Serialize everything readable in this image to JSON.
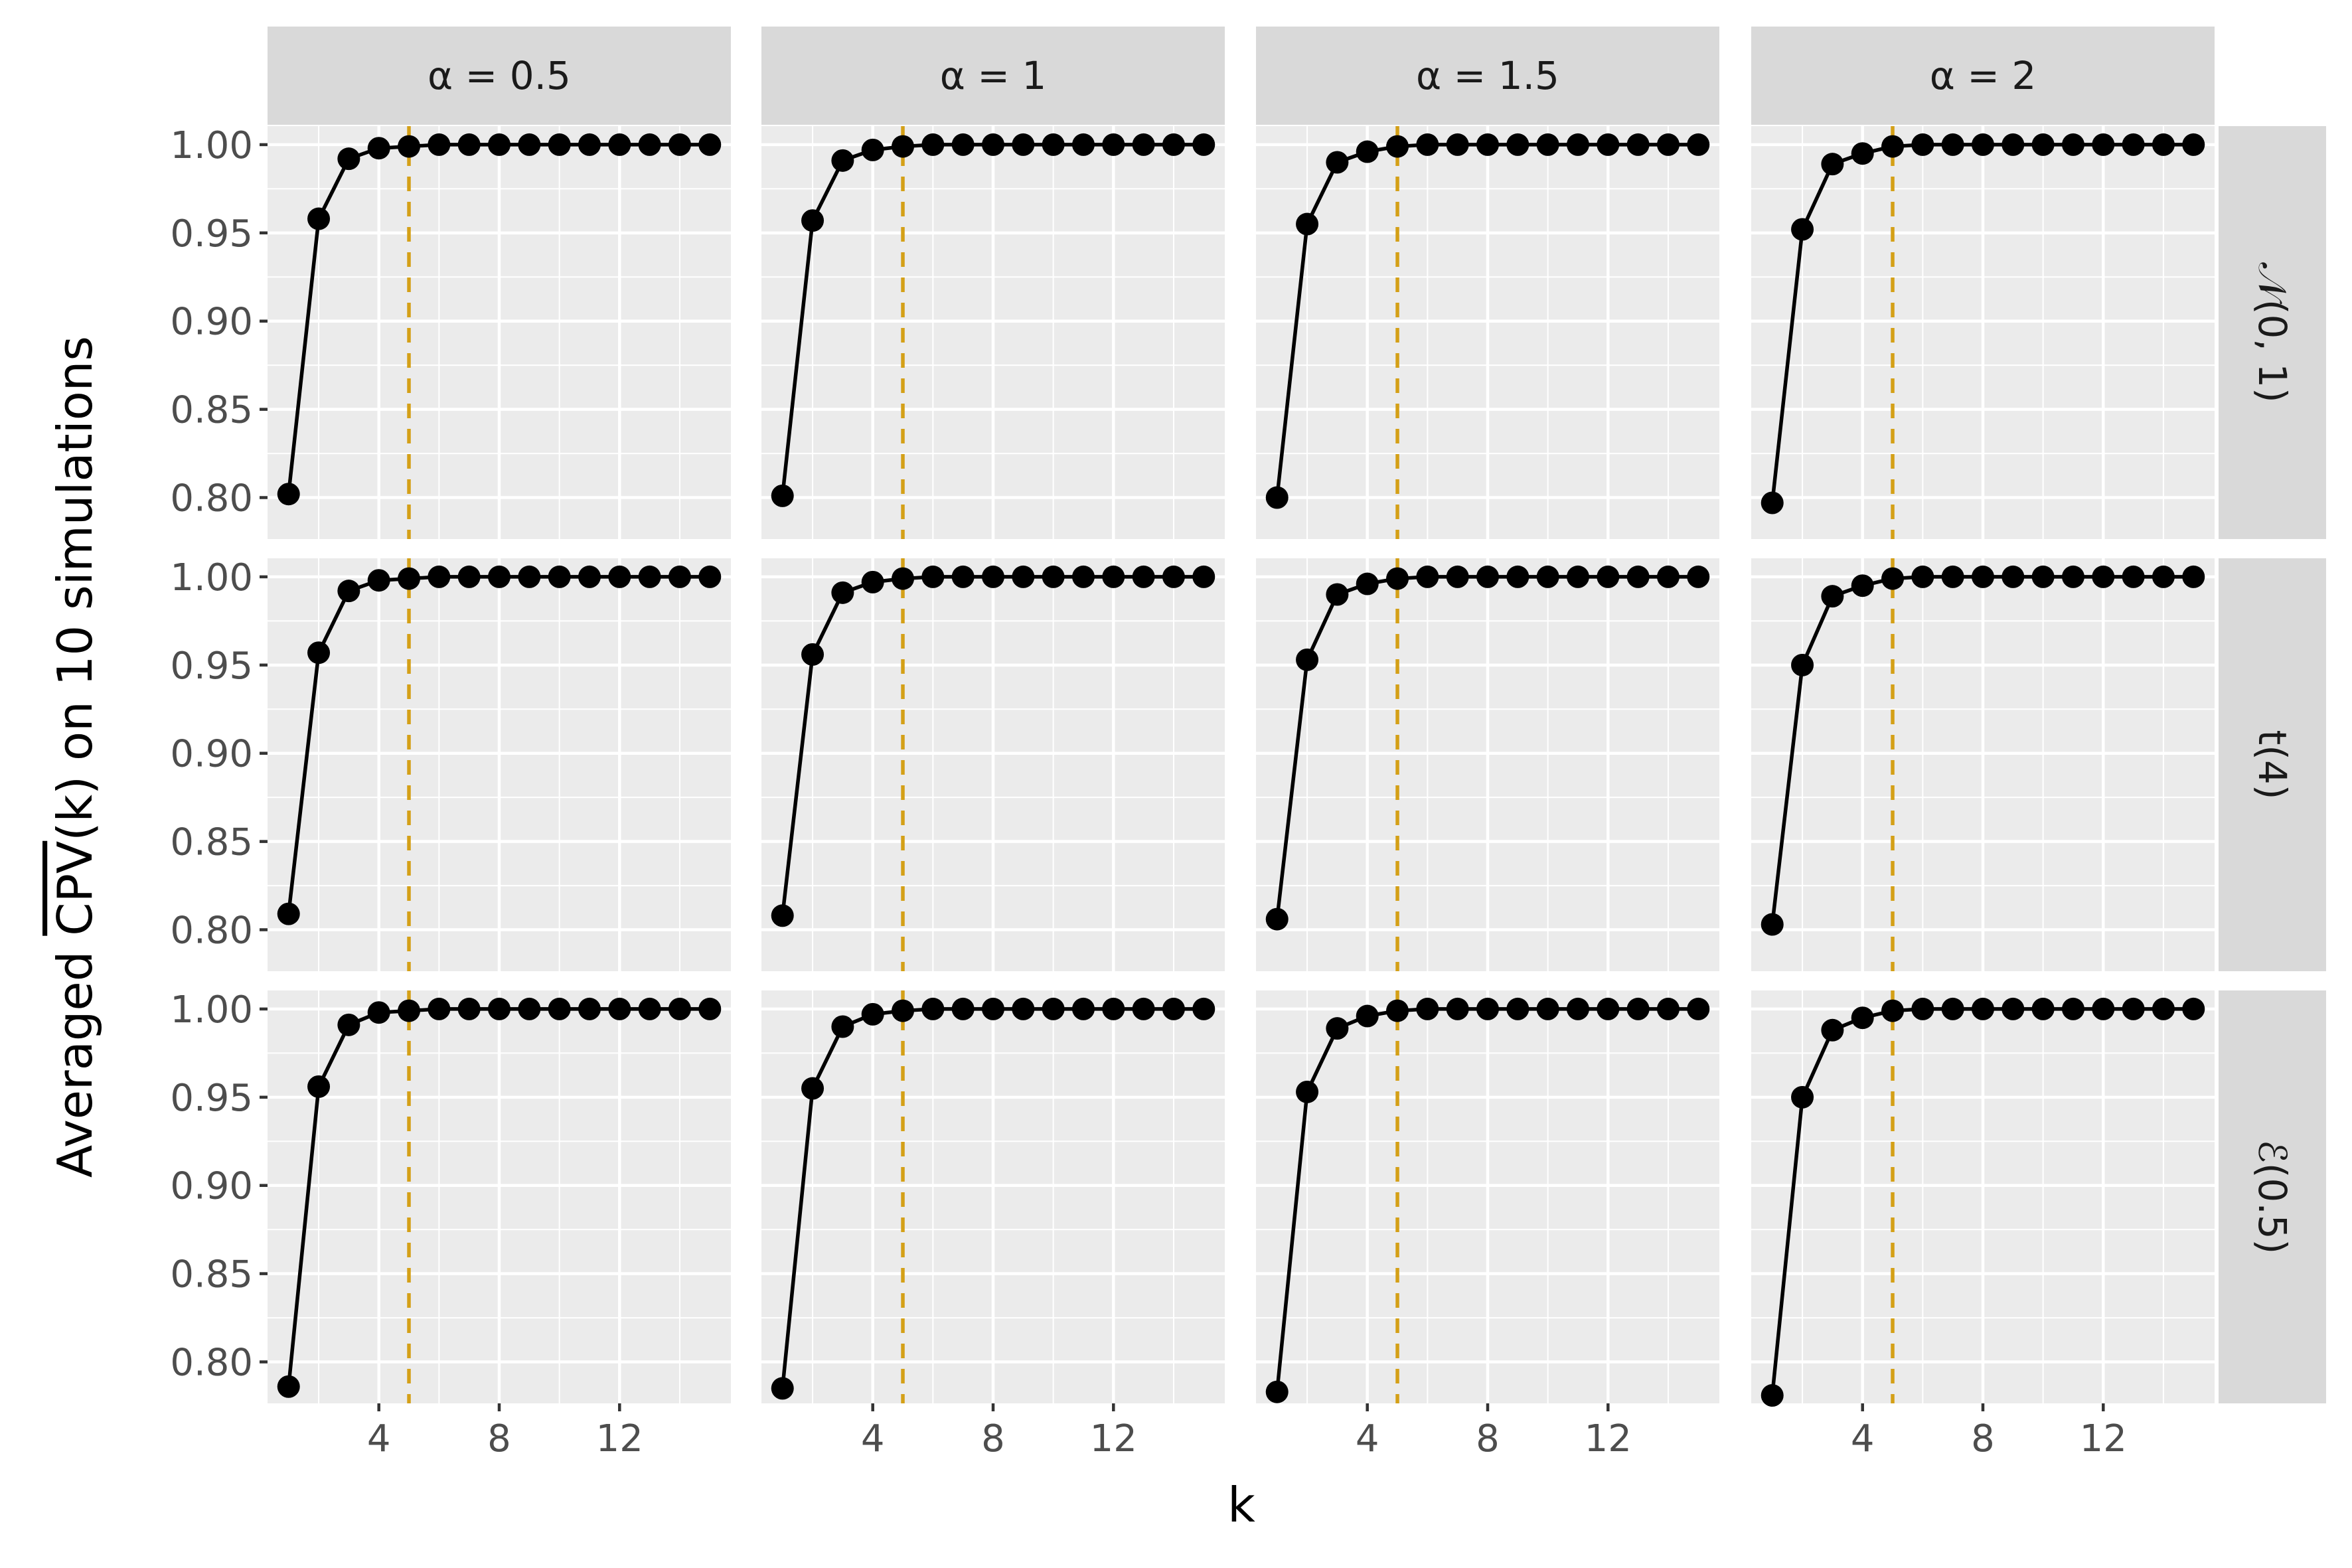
{
  "chart_data": {
    "type": "line",
    "xlabel": "k",
    "ylabel": "Averaged CPV(k) on 10 simulations",
    "ylabel_parts": {
      "before": "Averaged ",
      "overlined": "CPV",
      "after": "(k) on 10 simulations"
    },
    "column_facets": [
      "α = 0.5",
      "α = 1",
      "α = 1.5",
      "α = 2"
    ],
    "row_facets": [
      "𝒩(0, 1)",
      "t(4)",
      "ℰ(0.5)"
    ],
    "x_ticks": [
      4,
      8,
      12
    ],
    "x_tick_labels": [
      "4",
      "8",
      "12"
    ],
    "y_ticks": [
      0.8,
      0.85,
      0.9,
      0.95,
      1.0
    ],
    "y_tick_labels": [
      "0.80",
      "0.85",
      "0.90",
      "0.95",
      "1.00"
    ],
    "xlim": [
      0.3,
      15.7
    ],
    "ylim": [
      0.7765,
      1.0105
    ],
    "grid": true,
    "line_color": "#000000",
    "point_color": "#000000",
    "reference_line": {
      "x": 5,
      "color": "#D4A017",
      "style": "dashed"
    },
    "panel_background": "#EBEBEB",
    "strip_background": "#D9D9D9",
    "x": [
      1,
      2,
      3,
      4,
      5,
      6,
      7,
      8,
      9,
      10,
      11,
      12,
      13,
      14,
      15
    ],
    "panels": [
      {
        "row": 0,
        "col": 0,
        "values": [
          0.802,
          0.958,
          0.992,
          0.998,
          0.999,
          1,
          1,
          1,
          1,
          1,
          1,
          1,
          1,
          1,
          1
        ]
      },
      {
        "row": 0,
        "col": 1,
        "values": [
          0.801,
          0.957,
          0.991,
          0.997,
          0.999,
          1,
          1,
          1,
          1,
          1,
          1,
          1,
          1,
          1,
          1
        ]
      },
      {
        "row": 0,
        "col": 2,
        "values": [
          0.8,
          0.955,
          0.99,
          0.996,
          0.999,
          1,
          1,
          1,
          1,
          1,
          1,
          1,
          1,
          1,
          1
        ]
      },
      {
        "row": 0,
        "col": 3,
        "values": [
          0.797,
          0.952,
          0.989,
          0.995,
          0.999,
          1,
          1,
          1,
          1,
          1,
          1,
          1,
          1,
          1,
          1
        ]
      },
      {
        "row": 1,
        "col": 0,
        "values": [
          0.809,
          0.957,
          0.992,
          0.998,
          0.999,
          1,
          1,
          1,
          1,
          1,
          1,
          1,
          1,
          1,
          1
        ]
      },
      {
        "row": 1,
        "col": 1,
        "values": [
          0.808,
          0.956,
          0.991,
          0.997,
          0.999,
          1,
          1,
          1,
          1,
          1,
          1,
          1,
          1,
          1,
          1
        ]
      },
      {
        "row": 1,
        "col": 2,
        "values": [
          0.806,
          0.953,
          0.99,
          0.996,
          0.999,
          1,
          1,
          1,
          1,
          1,
          1,
          1,
          1,
          1,
          1
        ]
      },
      {
        "row": 1,
        "col": 3,
        "values": [
          0.803,
          0.95,
          0.989,
          0.995,
          0.999,
          1,
          1,
          1,
          1,
          1,
          1,
          1,
          1,
          1,
          1
        ]
      },
      {
        "row": 2,
        "col": 0,
        "values": [
          0.786,
          0.956,
          0.991,
          0.998,
          0.999,
          1,
          1,
          1,
          1,
          1,
          1,
          1,
          1,
          1,
          1
        ]
      },
      {
        "row": 2,
        "col": 1,
        "values": [
          0.785,
          0.955,
          0.99,
          0.997,
          0.999,
          1,
          1,
          1,
          1,
          1,
          1,
          1,
          1,
          1,
          1
        ]
      },
      {
        "row": 2,
        "col": 2,
        "values": [
          0.783,
          0.953,
          0.989,
          0.996,
          0.999,
          1,
          1,
          1,
          1,
          1,
          1,
          1,
          1,
          1,
          1
        ]
      },
      {
        "row": 2,
        "col": 3,
        "values": [
          0.781,
          0.95,
          0.988,
          0.995,
          0.999,
          1,
          1,
          1,
          1,
          1,
          1,
          1,
          1,
          1,
          1
        ]
      }
    ]
  }
}
